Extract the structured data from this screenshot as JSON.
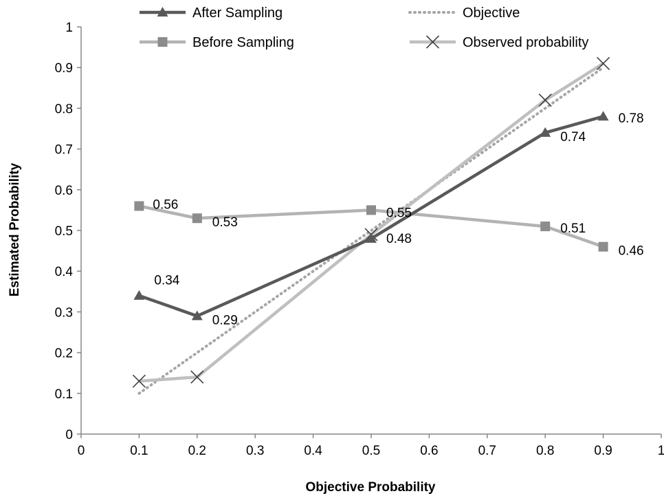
{
  "chart_data": {
    "type": "line",
    "xlabel": "Objective Probability",
    "ylabel": "Estimated Probability",
    "xlim": [
      0,
      1
    ],
    "ylim": [
      0,
      1
    ],
    "xticks": [
      "0",
      "0.1",
      "0.2",
      "0.3",
      "0.4",
      "0.5",
      "0.6",
      "0.7",
      "0.8",
      "0.9",
      "1"
    ],
    "yticks": [
      "0",
      "0.1",
      "0.2",
      "0.3",
      "0.4",
      "0.5",
      "0.6",
      "0.7",
      "0.8",
      "0.9",
      "1"
    ],
    "grid": false,
    "legend_position": "top",
    "series": [
      {
        "name": "After Sampling",
        "marker": "triangle",
        "style": "solid",
        "color": "#595959",
        "x": [
          0.1,
          0.2,
          0.5,
          0.8,
          0.9
        ],
        "y": [
          0.34,
          0.29,
          0.48,
          0.74,
          0.78
        ],
        "labels": [
          "0.34",
          "0.29",
          "0.48",
          "0.74",
          "0.78"
        ]
      },
      {
        "name": "Before Sampling",
        "marker": "square",
        "style": "solid",
        "color": "#b3b3b3",
        "marker_color": "#8c8c8c",
        "x": [
          0.1,
          0.2,
          0.5,
          0.8,
          0.9
        ],
        "y": [
          0.56,
          0.53,
          0.55,
          0.51,
          0.46
        ],
        "labels": [
          "0.56",
          "0.53",
          "0.55",
          "0.51",
          "0.46"
        ]
      },
      {
        "name": "Objective",
        "marker": "none",
        "style": "dotted",
        "color": "#a6a6a6",
        "x": [
          0.1,
          0.9
        ],
        "y": [
          0.1,
          0.9
        ]
      },
      {
        "name": "Observed probability",
        "marker": "x",
        "style": "solid",
        "color": "#bfbfbf",
        "marker_color": "#404040",
        "x": [
          0.1,
          0.2,
          0.5,
          0.8,
          0.9
        ],
        "y": [
          0.13,
          0.14,
          0.49,
          0.82,
          0.91
        ]
      }
    ]
  }
}
